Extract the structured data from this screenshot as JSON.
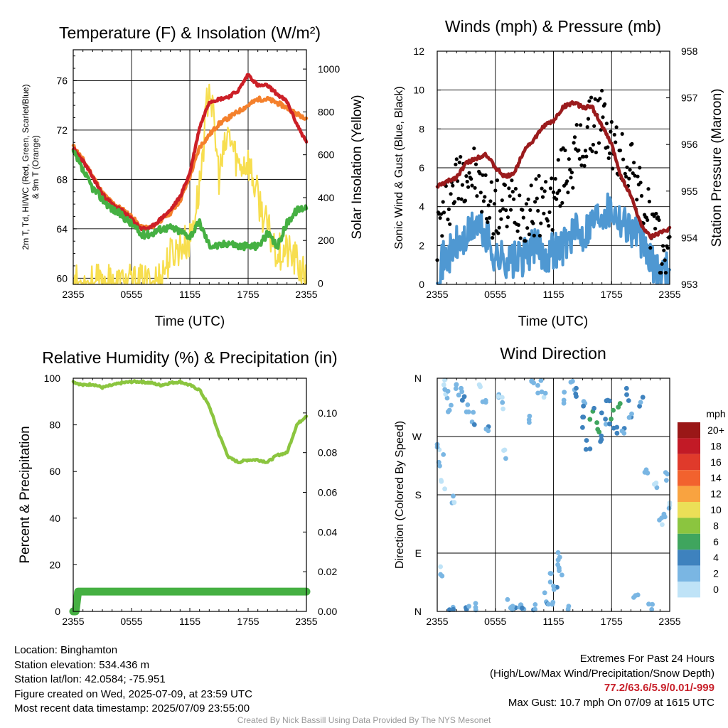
{
  "colors": {
    "temp": "#cc1f27",
    "dewpoint": "#45b042",
    "heat_index": "#c4142a",
    "temp_9m": "#f4802c",
    "solar": "#f7de4f",
    "wind": "#4f98d2",
    "gust": "#000000",
    "pressure": "#9b1b1d",
    "rh": "#8bc53f",
    "precip": "#45b042"
  },
  "chart_data": [
    {
      "id": "temperature",
      "type": "line",
      "title": "Temperature (F) & Insolation (W/m²)",
      "xlabel": "Time (UTC)",
      "ylabel": "2m T, Td, HI/WC (Red, Green, Scarlet/Blue) & 9m T (Orange)",
      "ylabel_right": "Solar Insolation (Yellow)",
      "x_ticks": [
        "2355",
        "0555",
        "1155",
        "1755",
        "2355"
      ],
      "y_ticks": [
        "60",
        "64",
        "68",
        "72",
        "76"
      ],
      "y_right_ticks": [
        "0",
        "200",
        "400",
        "600",
        "800",
        "1000"
      ],
      "ylim": [
        59.5,
        78.5
      ],
      "ylim_right": [
        -5,
        1090
      ],
      "x_hours": [
        0,
        24
      ],
      "x": [
        0,
        1,
        2,
        3,
        4,
        5,
        6,
        7,
        8,
        9,
        10,
        11,
        12,
        13,
        14,
        15,
        16,
        17,
        18,
        19,
        20,
        21,
        22,
        23,
        24
      ],
      "series": [
        {
          "name": "9m T",
          "axis": "left",
          "color_key": "temp_9m",
          "values": [
            70.7,
            69.6,
            68.3,
            66.9,
            66.1,
            65.6,
            65.0,
            64.1,
            64.1,
            64.7,
            65.3,
            66.3,
            68.2,
            70.6,
            71.6,
            72.5,
            73.0,
            73.5,
            74.0,
            74.5,
            74.5,
            74.2,
            73.8,
            73.3,
            73.0
          ]
        },
        {
          "name": "2m T",
          "axis": "left",
          "color_key": "temp",
          "values": [
            70.5,
            69.5,
            68.2,
            66.8,
            66.0,
            65.5,
            64.8,
            64.0,
            64.1,
            64.8,
            65.5,
            66.6,
            68.5,
            72.2,
            74.3,
            74.5,
            74.7,
            75.2,
            76.5,
            75.6,
            75.6,
            74.9,
            74.3,
            72.5,
            71.0
          ]
        },
        {
          "name": "2m Td",
          "axis": "left",
          "color_key": "dewpoint",
          "values": [
            70.2,
            68.7,
            67.3,
            66.4,
            65.6,
            65.1,
            64.4,
            63.5,
            63.6,
            64.0,
            64.1,
            63.8,
            63.4,
            64.5,
            62.7,
            62.6,
            62.9,
            62.6,
            62.6,
            62.6,
            63.6,
            62.5,
            64.5,
            65.5,
            65.8
          ]
        },
        {
          "name": "Solar Insolation",
          "axis": "right",
          "color_key": "solar",
          "values": [
            0,
            0,
            0,
            0,
            0,
            0,
            0,
            0,
            0,
            30,
            130,
            175,
            195,
            450,
            950,
            500,
            700,
            550,
            570,
            400,
            250,
            150,
            150,
            100,
            5
          ]
        }
      ]
    },
    {
      "id": "wind",
      "type": "line",
      "title": "Winds (mph) & Pressure (mb)",
      "xlabel": "Time (UTC)",
      "ylabel": "Sonic Wind & Gust (Blue, Black)",
      "ylabel_right": "Station Pressure (Maroon)",
      "x_ticks": [
        "2355",
        "0555",
        "1155",
        "1755",
        "2355"
      ],
      "y_ticks": [
        "0",
        "2",
        "4",
        "6",
        "8",
        "10",
        "12"
      ],
      "y_right_ticks": [
        "953",
        "954",
        "955",
        "956",
        "957",
        "958"
      ],
      "ylim": [
        0,
        12
      ],
      "ylim_right": [
        953,
        958
      ],
      "x_hours": [
        0,
        24
      ],
      "x": [
        0,
        1,
        2,
        3,
        4,
        5,
        6,
        7,
        8,
        9,
        10,
        11,
        12,
        13,
        14,
        15,
        16,
        17,
        18,
        19,
        20,
        21,
        22,
        23,
        24
      ],
      "series": [
        {
          "name": "Sonic Wind",
          "axis": "left",
          "color_key": "wind",
          "style": "thick-line",
          "values": [
            0.9,
            1.4,
            2.0,
            2.3,
            3.2,
            2.5,
            1.4,
            1.3,
            1.2,
            1.4,
            2.0,
            1.5,
            1.8,
            2.0,
            2.7,
            2.6,
            3.3,
            3.8,
            3.9,
            3.4,
            2.9,
            2.4,
            1.1,
            0.7,
            0.9
          ]
        },
        {
          "name": "Gust",
          "axis": "left",
          "color_key": "gust",
          "style": "dots",
          "values": [
            2.6,
            4.3,
            5.3,
            5.9,
            5.6,
            4.3,
            3.8,
            3.9,
            4.2,
            3.8,
            3.9,
            4.2,
            4.3,
            5.7,
            6.5,
            7.0,
            8.2,
            8.6,
            7.2,
            6.3,
            6.5,
            4.3,
            3.3,
            1.6,
            1.4
          ]
        },
        {
          "name": "Station Pressure",
          "axis": "right",
          "color_key": "pressure",
          "style": "line",
          "values": [
            955.1,
            955.2,
            955.3,
            955.6,
            955.7,
            955.8,
            955.5,
            955.3,
            955.4,
            955.9,
            956.1,
            956.4,
            956.5,
            956.8,
            956.9,
            956.8,
            956.8,
            956.4,
            956.0,
            955.3,
            954.9,
            954.3,
            954.0,
            954.1,
            954.2
          ]
        }
      ]
    },
    {
      "id": "humidity",
      "type": "line",
      "title": "Relative Humidity (%) & Precipitation (in)",
      "xlabel": "",
      "ylabel": "Percent & Precipitation",
      "x_ticks": [
        "2355",
        "0555",
        "1155",
        "1755",
        "2355"
      ],
      "y_ticks": [
        "0",
        "20",
        "40",
        "60",
        "80",
        "100"
      ],
      "y_right_ticks": [
        "0.00",
        "0.02",
        "0.04",
        "0.06",
        "0.08",
        "0.10"
      ],
      "ylim": [
        0,
        100
      ],
      "ylim_right": [
        0,
        0.1175
      ],
      "x_hours": [
        0,
        24
      ],
      "x": [
        0,
        1,
        2,
        3,
        4,
        5,
        6,
        7,
        8,
        9,
        10,
        11,
        12,
        13,
        14,
        15,
        16,
        17,
        18,
        19,
        20,
        21,
        22,
        23,
        24
      ],
      "series": [
        {
          "name": "Relative Humidity",
          "axis": "left",
          "color_key": "rh",
          "values": [
            98.5,
            97,
            97.5,
            96,
            97,
            98,
            98.5,
            98.5,
            98,
            97,
            98,
            98.5,
            97,
            95,
            88,
            76,
            66,
            64,
            65,
            65,
            64,
            67,
            68,
            80,
            84
          ]
        },
        {
          "name": "Precipitation",
          "axis": "right",
          "color_key": "precip",
          "values": [
            0,
            0.01,
            0.01,
            0.01,
            0.01,
            0.01,
            0.01,
            0.01,
            0.01,
            0.01,
            0.01,
            0.01,
            0.01,
            0.01,
            0.01,
            0.01,
            0.01,
            0.01,
            0.01,
            0.01,
            0.01,
            0.01,
            0.01,
            0.01,
            0.01
          ]
        }
      ]
    },
    {
      "id": "direction",
      "type": "scatter",
      "title": "Wind Direction",
      "ylabel": "Direction (Colored By Speed)",
      "x_ticks": [
        "2355",
        "0555",
        "1155",
        "1755",
        "2355"
      ],
      "y_ticks": [
        "N",
        "E",
        "S",
        "W",
        "N"
      ],
      "ylim": [
        0,
        360
      ],
      "x_hours": [
        0,
        24
      ],
      "points": [
        [
          0.0,
          260
        ],
        [
          0.3,
          60
        ],
        [
          0.4,
          235
        ],
        [
          0.6,
          200
        ],
        [
          0.8,
          350
        ],
        [
          1.0,
          335
        ],
        [
          1.3,
          315
        ],
        [
          1.5,
          6
        ],
        [
          1.6,
          175
        ],
        [
          2.0,
          352
        ],
        [
          2.3,
          342
        ],
        [
          2.7,
          330
        ],
        [
          3.0,
          308
        ],
        [
          3.2,
          5
        ],
        [
          3.7,
          298
        ],
        [
          4.0,
          3
        ],
        [
          4.4,
          350
        ],
        [
          4.8,
          322
        ],
        [
          5.2,
          288
        ],
        [
          6.2,
          338
        ],
        [
          6.6,
          320
        ],
        [
          7.0,
          245
        ],
        [
          7.5,
          10
        ],
        [
          8.0,
          8
        ],
        [
          8.5,
          12
        ],
        [
          9.0,
          4
        ],
        [
          9.4,
          300
        ],
        [
          9.8,
          355
        ],
        [
          10.1,
          5
        ],
        [
          10.6,
          348
        ],
        [
          11.0,
          330
        ],
        [
          11.3,
          22
        ],
        [
          11.7,
          5
        ],
        [
          11.9,
          48
        ],
        [
          12.2,
          30
        ],
        [
          12.4,
          72
        ],
        [
          12.6,
          80
        ],
        [
          12.8,
          65
        ],
        [
          13.2,
          328
        ],
        [
          13.6,
          8
        ],
        [
          14.0,
          350
        ],
        [
          14.5,
          335
        ],
        [
          15.0,
          290
        ],
        [
          15.3,
          318
        ],
        [
          15.6,
          260
        ],
        [
          16.0,
          305
        ],
        [
          16.5,
          285
        ],
        [
          16.8,
          268
        ],
        [
          17.2,
          298
        ],
        [
          17.6,
          325
        ],
        [
          18.0,
          300
        ],
        [
          18.4,
          280
        ],
        [
          18.8,
          315
        ],
        [
          19.2,
          272
        ],
        [
          19.6,
          335
        ],
        [
          20.0,
          298
        ],
        [
          20.5,
          30
        ],
        [
          21.0,
          325
        ],
        [
          21.5,
          215
        ],
        [
          22.0,
          9
        ],
        [
          22.6,
          195
        ],
        [
          23.0,
          135
        ],
        [
          23.4,
          150
        ],
        [
          23.8,
          210
        ],
        [
          24.0,
          170
        ]
      ],
      "speeds": [
        1,
        1,
        2,
        1,
        1,
        1,
        2,
        3,
        1,
        2,
        2,
        3,
        2,
        3,
        3,
        2,
        1,
        2,
        3,
        1,
        1,
        1,
        2,
        3,
        2,
        3,
        2,
        2,
        3,
        2,
        1,
        3,
        2,
        2,
        3,
        2,
        2,
        2,
        2,
        2,
        2,
        4,
        4,
        3,
        4,
        5,
        6,
        4,
        3,
        4,
        5,
        4,
        6,
        3,
        4,
        3,
        2,
        3,
        2,
        2,
        1,
        1,
        1,
        2,
        1
      ],
      "legend": {
        "title": "mph",
        "labels": [
          "20+",
          "18",
          "16",
          "14",
          "12",
          "10",
          "8",
          "6",
          "4",
          "2",
          "0"
        ],
        "colors": [
          "#9a1717",
          "#c21a26",
          "#e03a2b",
          "#f2622e",
          "#f9a340",
          "#ebdf57",
          "#8bc53f",
          "#3fa55e",
          "#3e82be",
          "#7ab6e3",
          "#bfe3f7"
        ]
      }
    }
  ],
  "footer": {
    "location": "Location: Binghamton",
    "elevation": "Station elevation: 534.436 m",
    "latlon": "Station lat/lon: 42.0584; -75.951",
    "created": "Figure created on Wed, 2025-07-09, at 23:59 UTC",
    "recent": "Most recent data timestamp: 2025/07/09 23:55:00",
    "extremes_title": "Extremes For Past 24 Hours",
    "extremes_subtitle": "(High/Low/Max Wind/Precipitation/Snow Depth)",
    "extremes_values": "77.2/63.6/5.9/0.01/-999",
    "max_gust": "Max Gust: 10.7 mph On 07/09 at 1615 UTC",
    "credit": "Created By Nick Bassill Using Data Provided By The NYS Mesonet"
  }
}
